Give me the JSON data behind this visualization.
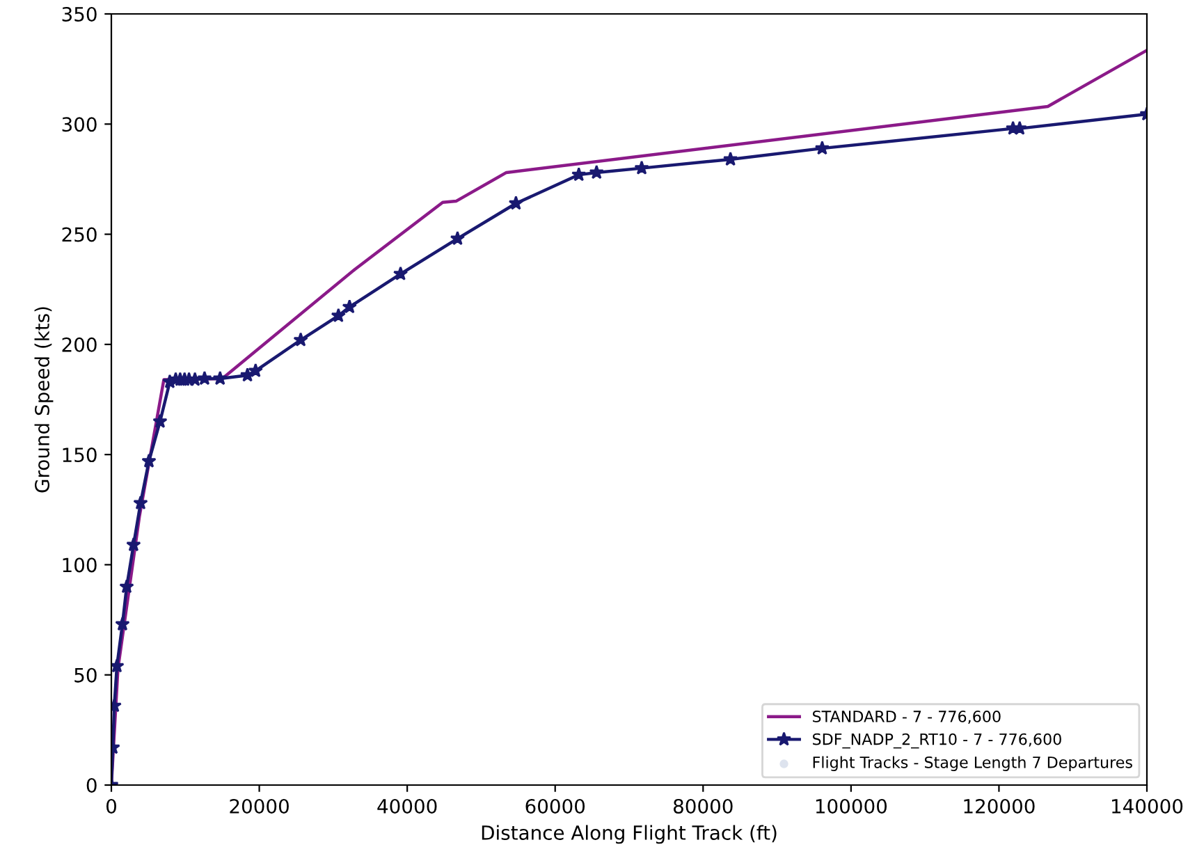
{
  "chart_data": {
    "type": "line",
    "xlabel": "Distance Along Flight Track (ft)",
    "ylabel": "Ground Speed (kts)",
    "xlim": [
      0,
      140000
    ],
    "ylim": [
      0,
      350
    ],
    "xticks": [
      0,
      20000,
      40000,
      60000,
      80000,
      100000,
      120000,
      140000
    ],
    "yticks": [
      0,
      50,
      100,
      150,
      200,
      250,
      300,
      350
    ],
    "grid": false,
    "legend": "bottom right",
    "series": [
      {
        "name": "STANDARD - 7 - 776,600",
        "color": "#8b1a89",
        "marker": "none",
        "x": [
          0,
          900,
          3800,
          7100,
          15000,
          32900,
          44800,
          46600,
          53400,
          126600,
          140000
        ],
        "values": [
          0,
          53,
          122,
          184,
          184.5,
          234,
          264.5,
          265,
          278,
          308,
          333.5
        ]
      },
      {
        "name": "SDF_NADP_2_RT10 - 7 - 776,600",
        "color": "#191970",
        "marker": "star",
        "x": [
          0,
          200,
          400,
          750,
          1500,
          2070,
          3000,
          3950,
          5080,
          6580,
          7900,
          8700,
          9300,
          9900,
          10500,
          11300,
          12600,
          14700,
          18400,
          19500,
          25600,
          30700,
          32200,
          39100,
          46800,
          54700,
          63200,
          65600,
          71700,
          83700,
          96100,
          121900,
          122800,
          140000
        ],
        "values": [
          0,
          17,
          36,
          54,
          73,
          90,
          109,
          128,
          147,
          165,
          183,
          184,
          184,
          184,
          184,
          184,
          184.5,
          184.5,
          186,
          188,
          202,
          213,
          217,
          232,
          248,
          264,
          277,
          278,
          280,
          284,
          289,
          298,
          298,
          304.5
        ]
      },
      {
        "name": "Flight Tracks - Stage Length 7 Departures",
        "type": "scatter",
        "color": "#dde3ee",
        "marker": "circle"
      }
    ]
  }
}
